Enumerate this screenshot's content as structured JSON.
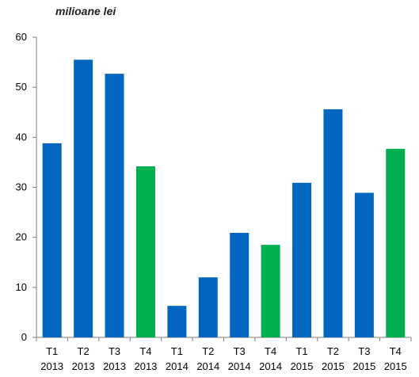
{
  "chart_data": {
    "type": "bar",
    "unit_label": "milioane lei",
    "title": "",
    "xlabel": "",
    "ylabel": "",
    "ylim": [
      0,
      60
    ],
    "yticks": [
      "0",
      "10",
      "20",
      "30",
      "40",
      "50",
      "60"
    ],
    "grid": false,
    "legend": "none",
    "categories": [
      [
        "T1",
        "2013"
      ],
      [
        "T2",
        "2013"
      ],
      [
        "T3",
        "2013"
      ],
      [
        "T4",
        "2013"
      ],
      [
        "T1",
        "2014"
      ],
      [
        "T2",
        "2014"
      ],
      [
        "T3",
        "2014"
      ],
      [
        "T4",
        "2014"
      ],
      [
        "T1",
        "2015"
      ],
      [
        "T2",
        "2015"
      ],
      [
        "T3",
        "2015"
      ],
      [
        "T4",
        "2015"
      ]
    ],
    "values": [
      38.8,
      55.5,
      52.7,
      34.2,
      6.3,
      12.0,
      20.9,
      18.5,
      30.9,
      45.6,
      28.9,
      37.7
    ],
    "colors": {
      "quarter_bar": "#0066C0",
      "q4_bar": "#00B050",
      "axis": "#7f7f7f"
    },
    "bar_color_keys": [
      "quarter_bar",
      "quarter_bar",
      "quarter_bar",
      "q4_bar",
      "quarter_bar",
      "quarter_bar",
      "quarter_bar",
      "q4_bar",
      "quarter_bar",
      "quarter_bar",
      "quarter_bar",
      "q4_bar"
    ]
  }
}
